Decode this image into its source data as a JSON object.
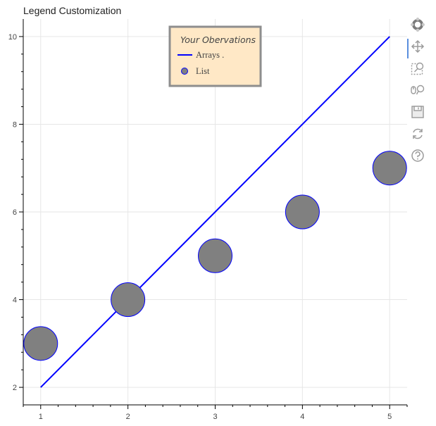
{
  "colors": {
    "line": "#0000ff",
    "marker_fill": "#808080",
    "marker_edge": "#0000ff",
    "legend_fill": "#ffe8c6",
    "legend_border": "#8e8e8e",
    "grid": "#e6e6e6",
    "axis": "#000000",
    "toolbar_icon": "#9a9a9a",
    "toolbar_active": "#5a8ede"
  },
  "chart_data": {
    "type": "line",
    "title": "Legend Customization",
    "xlabel": "",
    "ylabel": "",
    "xlim": [
      0.8,
      5.2
    ],
    "ylim": [
      1.6,
      10.4
    ],
    "x_ticks": [
      1,
      2,
      3,
      4,
      5
    ],
    "x_tick_labels": [
      "1",
      "2",
      "3",
      "4",
      "5"
    ],
    "x_minor_ticks": [
      0.8,
      1.2,
      1.4,
      1.6,
      1.8,
      2.2,
      2.4,
      2.6,
      2.8,
      3.2,
      3.4,
      3.6,
      3.8,
      4.2,
      4.4,
      4.6,
      4.8,
      5.2
    ],
    "y_ticks": [
      2,
      4,
      6,
      8,
      10
    ],
    "y_tick_labels": [
      "2",
      "4",
      "6",
      "8",
      "10"
    ],
    "y_minor_ticks": [
      2.4,
      2.8,
      3.2,
      3.6,
      4.4,
      4.8,
      5.2,
      5.6,
      6.4,
      6.8,
      7.2,
      7.6,
      8.4,
      8.8,
      9.2,
      9.6
    ],
    "grid": true,
    "legend": {
      "title": "Your Obervations",
      "placement": "top-center",
      "items": [
        {
          "label": "Arrays .",
          "glyph": "line"
        },
        {
          "label": "List",
          "glyph": "circle"
        }
      ]
    },
    "series": [
      {
        "kind": "line",
        "x": [
          1,
          2,
          3,
          4,
          5
        ],
        "y": [
          2,
          4,
          6,
          8,
          10
        ]
      },
      {
        "kind": "circle",
        "x": [
          1,
          2,
          3,
          4,
          5
        ],
        "y": [
          3,
          4,
          5,
          6,
          7
        ]
      }
    ]
  },
  "toolbar": {
    "tools": [
      {
        "icon": "bokeh-logo-icon",
        "active": false
      },
      {
        "icon": "pan-icon",
        "active": true
      },
      {
        "icon": "box-zoom-icon",
        "active": false
      },
      {
        "icon": "wheel-zoom-icon",
        "active": false
      },
      {
        "icon": "save-icon",
        "active": false
      },
      {
        "icon": "reset-icon",
        "active": false
      },
      {
        "icon": "help-icon",
        "active": false
      }
    ]
  }
}
